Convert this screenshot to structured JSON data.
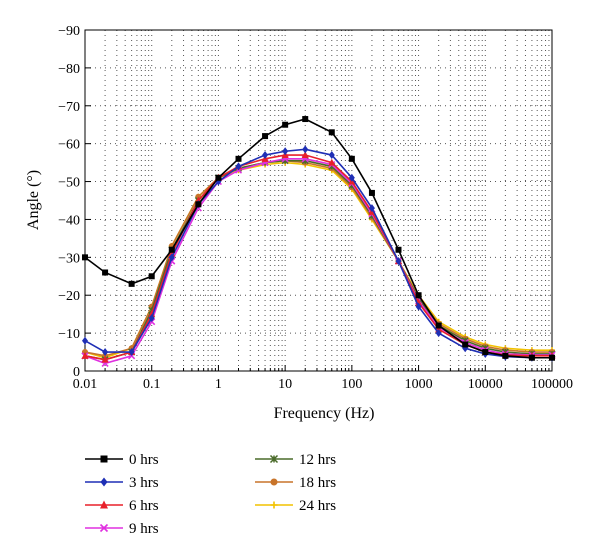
{
  "chart_data": {
    "type": "line",
    "title": "",
    "xlabel": "Frequency (Hz)",
    "ylabel": "Angle (°)",
    "x_scale": "log",
    "xlim": [
      0.01,
      100000
    ],
    "ylim": [
      0,
      -90
    ],
    "x_ticks": [
      "0.01",
      "0.1",
      "1",
      "10",
      "100",
      "1000",
      "10000",
      "100000"
    ],
    "y_ticks": [
      "0",
      "−10",
      "−20",
      "−30",
      "−40",
      "−50",
      "−60",
      "−70",
      "−80",
      "−90"
    ],
    "grid": "dotted",
    "legend_position": "below",
    "x": [
      0.01,
      0.02,
      0.05,
      0.1,
      0.2,
      0.5,
      1,
      2,
      5,
      10,
      20,
      50,
      100,
      200,
      500,
      1000,
      2000,
      5000,
      10000,
      20000,
      50000,
      100000
    ],
    "series": [
      {
        "name": "0 hrs",
        "color": "#000000",
        "marker": "square",
        "values": [
          -30,
          -26,
          -23,
          -25,
          -32,
          -44,
          -51,
          -56,
          -62,
          -65,
          -66.5,
          -63,
          -56,
          -47,
          -32,
          -20,
          -12,
          -7,
          -5,
          -4,
          -3.5,
          -3.5
        ]
      },
      {
        "name": "3 hrs",
        "color": "#1f2fb5",
        "marker": "diamond",
        "values": [
          -8,
          -5,
          -5,
          -14,
          -30,
          -44,
          -50,
          -54,
          -57,
          -58,
          -58.5,
          -57,
          -51,
          -43,
          -29,
          -17,
          -10,
          -6,
          -4.5,
          -3.8,
          -3.5,
          -3.5
        ]
      },
      {
        "name": "6 hrs",
        "color": "#e8202a",
        "marker": "triangle",
        "values": [
          -4,
          -3,
          -5,
          -15,
          -31,
          -45,
          -51,
          -54,
          -56,
          -57,
          -57,
          -55,
          -50,
          -42,
          -29,
          -18,
          -11,
          -7,
          -5,
          -4.2,
          -4,
          -4
        ]
      },
      {
        "name": "9 hrs",
        "color": "#e030e0",
        "marker": "x",
        "values": [
          -4,
          -2,
          -4,
          -13,
          -29,
          -43,
          -50,
          -53,
          -55,
          -56,
          -56,
          -54.5,
          -49.5,
          -41.5,
          -29,
          -18.5,
          -11.5,
          -7.5,
          -5.5,
          -4.5,
          -4.2,
          -4.2
        ]
      },
      {
        "name": "12 hrs",
        "color": "#4a6b2a",
        "marker": "star",
        "values": [
          -4,
          -3,
          -5,
          -16,
          -32,
          -45,
          -51,
          -53.5,
          -55,
          -55.5,
          -55.5,
          -54,
          -49,
          -41,
          -29,
          -19,
          -12,
          -8,
          -6,
          -5,
          -4.5,
          -4.5
        ]
      },
      {
        "name": "18 hrs",
        "color": "#c8742a",
        "marker": "circle",
        "values": [
          -5,
          -4,
          -6,
          -17,
          -33,
          -46,
          -51,
          -53.5,
          -55,
          -55.5,
          -55,
          -53.5,
          -48.5,
          -40.5,
          -29,
          -19.5,
          -12.5,
          -8.5,
          -6.5,
          -5.5,
          -5,
          -5
        ]
      },
      {
        "name": "24 hrs",
        "color": "#f2c200",
        "marker": "plus",
        "values": [
          -5,
          -3.5,
          -6,
          -17,
          -33,
          -46,
          -51,
          -53,
          -54.5,
          -55,
          -54.5,
          -53,
          -48,
          -40,
          -29,
          -20,
          -13,
          -9,
          -7,
          -6,
          -5.5,
          -5.5
        ]
      }
    ]
  }
}
